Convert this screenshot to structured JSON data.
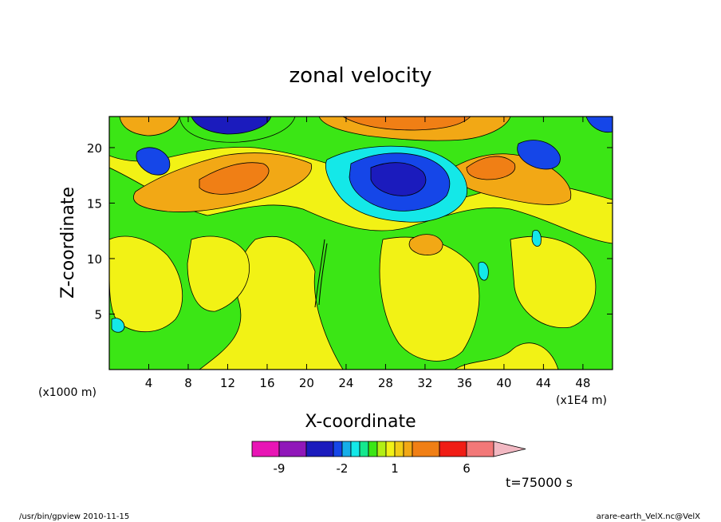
{
  "chart_data": {
    "type": "heatmap",
    "title": "zonal velocity",
    "xlabel": "X-coordinate",
    "ylabel": "Z-coordinate",
    "x_unit_note": "(x1E4 m)",
    "y_unit_note": "(x1000 m)",
    "xlim": [
      0,
      51
    ],
    "ylim": [
      0,
      22.8
    ],
    "x_ticks": [
      4,
      8,
      12,
      16,
      20,
      24,
      28,
      32,
      36,
      40,
      44,
      48
    ],
    "x_tick_labels": [
      "4",
      "8",
      "12",
      "16",
      "20",
      "24",
      "28",
      "32",
      "36",
      "40",
      "44",
      "48"
    ],
    "y_ticks": [
      5,
      10,
      15,
      20
    ],
    "y_tick_labels": [
      "5",
      "10",
      "15",
      "20"
    ],
    "time_label": "t=75000 s",
    "colorbar": {
      "levels": [
        -9,
        -6,
        -3,
        -2,
        -1.5,
        -1,
        -0.5,
        0,
        0.5,
        1,
        1.5,
        2,
        3,
        6,
        9
      ],
      "tick_values": [
        -9,
        -2,
        1,
        6
      ],
      "tick_labels": [
        "-9",
        "-2",
        "1",
        "6"
      ],
      "colors": [
        "#e815b5",
        "#9017b9",
        "#1b1bbd",
        "#1546e8",
        "#15aee8",
        "#14e8e8",
        "#15e88e",
        "#3be615",
        "#b2ef15",
        "#f2f215",
        "#f2cd15",
        "#f2a815",
        "#f07f15",
        "#f01d15",
        "#f27878",
        "#f2b8c2"
      ]
    },
    "regions": [
      {
        "level": "neutral",
        "x": [
          0,
          51
        ],
        "z": [
          0,
          22.8
        ]
      },
      {
        "level": "positive-weak",
        "x": [
          0,
          12
        ],
        "z": [
          6,
          16
        ]
      },
      {
        "level": "positive-moderate",
        "x": [
          6,
          20
        ],
        "z": [
          15,
          19.5
        ]
      },
      {
        "level": "negative-strong",
        "x": [
          24,
          33
        ],
        "z": [
          15,
          20
        ]
      },
      {
        "level": "positive-moderate",
        "x": [
          36,
          46
        ],
        "z": [
          16,
          20
        ]
      }
    ]
  },
  "footer": {
    "left": "/usr/bin/gpview   2010-11-15",
    "right": "arare-earth_VelX.nc@VelX"
  }
}
